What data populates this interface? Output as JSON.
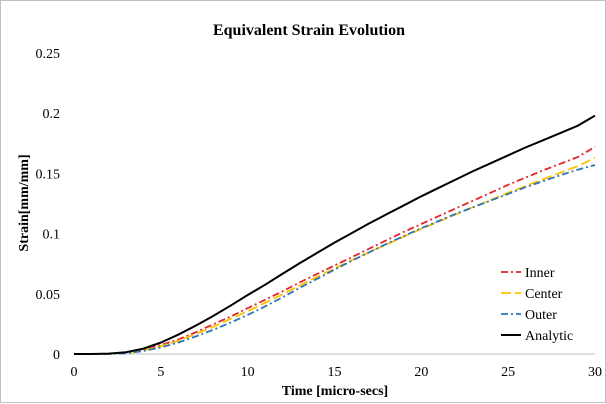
{
  "chart_data": {
    "type": "line",
    "title": "Equivalent Strain Evolution",
    "xlabel": "Time [micro-secs]",
    "ylabel": "Strain[mm/mm]",
    "xlim": [
      0,
      30
    ],
    "ylim": [
      0,
      0.25
    ],
    "xticks": [
      0,
      5,
      10,
      15,
      20,
      25,
      30
    ],
    "xtick_labels": [
      "0",
      "5",
      "10",
      "15",
      "20",
      "25",
      "30"
    ],
    "yticks": [
      0,
      0.05,
      0.1,
      0.15,
      0.2,
      0.25
    ],
    "ytick_labels": [
      "0",
      "0.05",
      "0.1",
      "0.15",
      "0.2",
      "0.25"
    ],
    "grid": false,
    "legend_position": "right",
    "series": [
      {
        "name": "Inner",
        "color": "#e3262c",
        "dash": "dash-dot",
        "x": [
          0,
          1,
          2,
          3,
          4,
          5,
          6,
          7,
          8,
          9,
          10,
          11,
          12,
          13,
          14,
          15,
          16,
          17,
          18,
          19,
          20,
          21,
          22,
          23,
          24,
          25,
          26,
          27,
          28,
          29,
          30
        ],
        "y": [
          0,
          0,
          0.0002,
          0.001,
          0.0035,
          0.0075,
          0.012,
          0.018,
          0.0245,
          0.031,
          0.038,
          0.045,
          0.052,
          0.0595,
          0.0665,
          0.0735,
          0.0805,
          0.0875,
          0.0945,
          0.1015,
          0.108,
          0.1145,
          0.121,
          0.1275,
          0.134,
          0.1405,
          0.1465,
          0.1525,
          0.158,
          0.1635,
          0.172
        ]
      },
      {
        "name": "Center",
        "color": "#ffc000",
        "dash": "long-dash",
        "x": [
          0,
          1,
          2,
          3,
          4,
          5,
          6,
          7,
          8,
          9,
          10,
          11,
          12,
          13,
          14,
          15,
          16,
          17,
          18,
          19,
          20,
          21,
          22,
          23,
          24,
          25,
          26,
          27,
          28,
          29,
          30
        ],
        "y": [
          0,
          0,
          0.0001,
          0.0008,
          0.003,
          0.0065,
          0.011,
          0.0165,
          0.0225,
          0.029,
          0.0355,
          0.0425,
          0.0495,
          0.057,
          0.064,
          0.071,
          0.078,
          0.0845,
          0.091,
          0.0975,
          0.104,
          0.11,
          0.116,
          0.122,
          0.128,
          0.134,
          0.1395,
          0.145,
          0.1505,
          0.156,
          0.163
        ]
      },
      {
        "name": "Outer",
        "color": "#2e75b6",
        "dash": "dash-dot",
        "x": [
          0,
          1,
          2,
          3,
          4,
          5,
          6,
          7,
          8,
          9,
          10,
          11,
          12,
          13,
          14,
          15,
          16,
          17,
          18,
          19,
          20,
          21,
          22,
          23,
          24,
          25,
          26,
          27,
          28,
          29,
          30
        ],
        "y": [
          0,
          0,
          0.0001,
          0.0006,
          0.0025,
          0.0055,
          0.0095,
          0.0145,
          0.02,
          0.026,
          0.0325,
          0.0395,
          0.047,
          0.055,
          0.0625,
          0.07,
          0.0775,
          0.0845,
          0.0915,
          0.098,
          0.1045,
          0.1105,
          0.1165,
          0.122,
          0.1275,
          0.133,
          0.1385,
          0.1435,
          0.1485,
          0.153,
          0.157
        ]
      },
      {
        "name": "Analytic",
        "color": "#000000",
        "dash": "solid",
        "x": [
          0,
          1,
          2,
          3,
          4,
          5,
          6,
          7,
          8,
          9,
          10,
          11,
          12,
          13,
          14,
          15,
          16,
          17,
          18,
          19,
          20,
          21,
          22,
          23,
          24,
          25,
          26,
          27,
          28,
          29,
          30
        ],
        "y": [
          0,
          0,
          0.0003,
          0.0015,
          0.0045,
          0.0095,
          0.016,
          0.0235,
          0.0315,
          0.04,
          0.049,
          0.0575,
          0.0665,
          0.0755,
          0.084,
          0.0925,
          0.1005,
          0.1085,
          0.116,
          0.1235,
          0.131,
          0.138,
          0.145,
          0.152,
          0.1585,
          0.165,
          0.1715,
          0.1775,
          0.1835,
          0.1895,
          0.198
        ]
      }
    ]
  }
}
